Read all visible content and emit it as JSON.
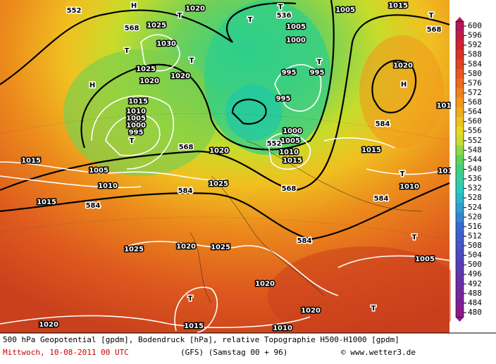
{
  "map": {
    "labels": [
      "552",
      "H",
      "1020",
      "T",
      "T",
      "T",
      "536",
      "1005",
      "1015",
      "T",
      "568",
      "568",
      "T",
      "1025",
      "1030",
      "1025",
      "1020",
      "1020",
      "T",
      "1005",
      "1000",
      "T",
      "995",
      "995",
      "1020",
      "H",
      "H",
      "995",
      "1015",
      "1010",
      "1005",
      "1000",
      "995",
      "T",
      "1000",
      "1005",
      "552",
      "1010",
      "1015",
      "568",
      "1020",
      "1015",
      "584",
      "1015",
      "1005",
      "1010",
      "T",
      "1010",
      "1025",
      "584",
      "568",
      "584",
      "1015",
      "584",
      "T",
      "584",
      "1025",
      "1020",
      "1025",
      "1005",
      "1020",
      "T",
      "1020",
      "T",
      "1015",
      "1010",
      "1020",
      "101",
      "101"
    ]
  },
  "legend": {
    "values": [
      600,
      596,
      592,
      588,
      584,
      580,
      576,
      572,
      568,
      564,
      560,
      556,
      552,
      548,
      544,
      540,
      536,
      532,
      528,
      524,
      520,
      516,
      512,
      508,
      504,
      500,
      496,
      492,
      488,
      484,
      480
    ]
  },
  "footer": {
    "line1": "500 hPa Geopotential [gpdm], Bodendruck [hPa], relative Topographie H500-H1000 [gpdm]",
    "date": "Mittwoch, 10-08-2011  00 UTC",
    "run": "(GFS)  (Samstag 00 + 96)",
    "credit": "© www.wetter3.de"
  }
}
